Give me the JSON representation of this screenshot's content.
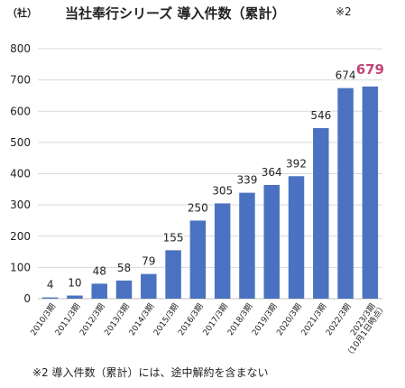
{
  "header": {
    "unit": "（社）",
    "title": "当社奉行シリーズ 導入件数（累計）",
    "note_mark": "※2"
  },
  "footnote": "※2 導入件数（累計）には、途中解約を含まない",
  "chart_data": {
    "type": "bar",
    "categories": [
      "2010/3期",
      "2011/3期",
      "2012/3期",
      "2013/3期",
      "2014/3期",
      "2015/3期",
      "2016/3期",
      "2017/3期",
      "2018/3期",
      "2019/3期",
      "2020/3期",
      "2021/3期",
      "2022/3期",
      "2023/3期"
    ],
    "category_note_last": "（10月1日時点）",
    "values": [
      4,
      10,
      48,
      58,
      79,
      155,
      250,
      305,
      339,
      364,
      392,
      546,
      674,
      679
    ],
    "value_labels": [
      "4",
      "10",
      "48",
      "58",
      "79",
      "155",
      "250",
      "305",
      "339",
      "364",
      "392",
      "546",
      "674",
      "679"
    ],
    "ylim": [
      0,
      800
    ],
    "yticks": [
      0,
      100,
      200,
      300,
      400,
      500,
      600,
      700,
      800
    ],
    "ytick_labels": [
      "0",
      "100",
      "200",
      "300",
      "400",
      "500",
      "600",
      "700",
      "800"
    ],
    "grid": true,
    "bar_color": "#4a72c0",
    "highlight_color": "#c0477a",
    "highlight_index": 13
  }
}
